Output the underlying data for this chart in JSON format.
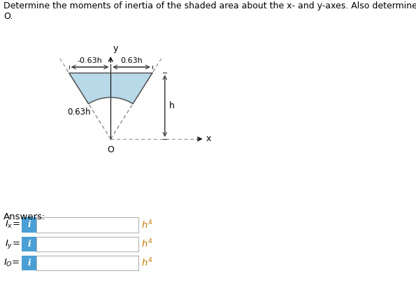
{
  "title_line1": "Determine the moments of inertia of the shaded area about the x- and y-axes. Also determine the polar mor",
  "title_line2": "O.",
  "title_fontsize": 9.0,
  "shape_color": "#b8d9e8",
  "shape_edge_color": "#555555",
  "dashed_color": "#999999",
  "dim_line_color": "#333333",
  "label_063h_top_left": "-0.63h",
  "label_063h_top_right": "0.63h",
  "label_063h_diag": "0.63h",
  "label_h": "h",
  "label_O": "O",
  "label_x": "x",
  "label_y": "y",
  "answers_label": "Answers:",
  "box_color": "#4a9fd4",
  "box_text": "i",
  "box_text_color": "white",
  "input_box_edge": "#aaaaaa",
  "input_box_fill": "white",
  "fig_bg": "white",
  "h4_color": "#c47a00"
}
